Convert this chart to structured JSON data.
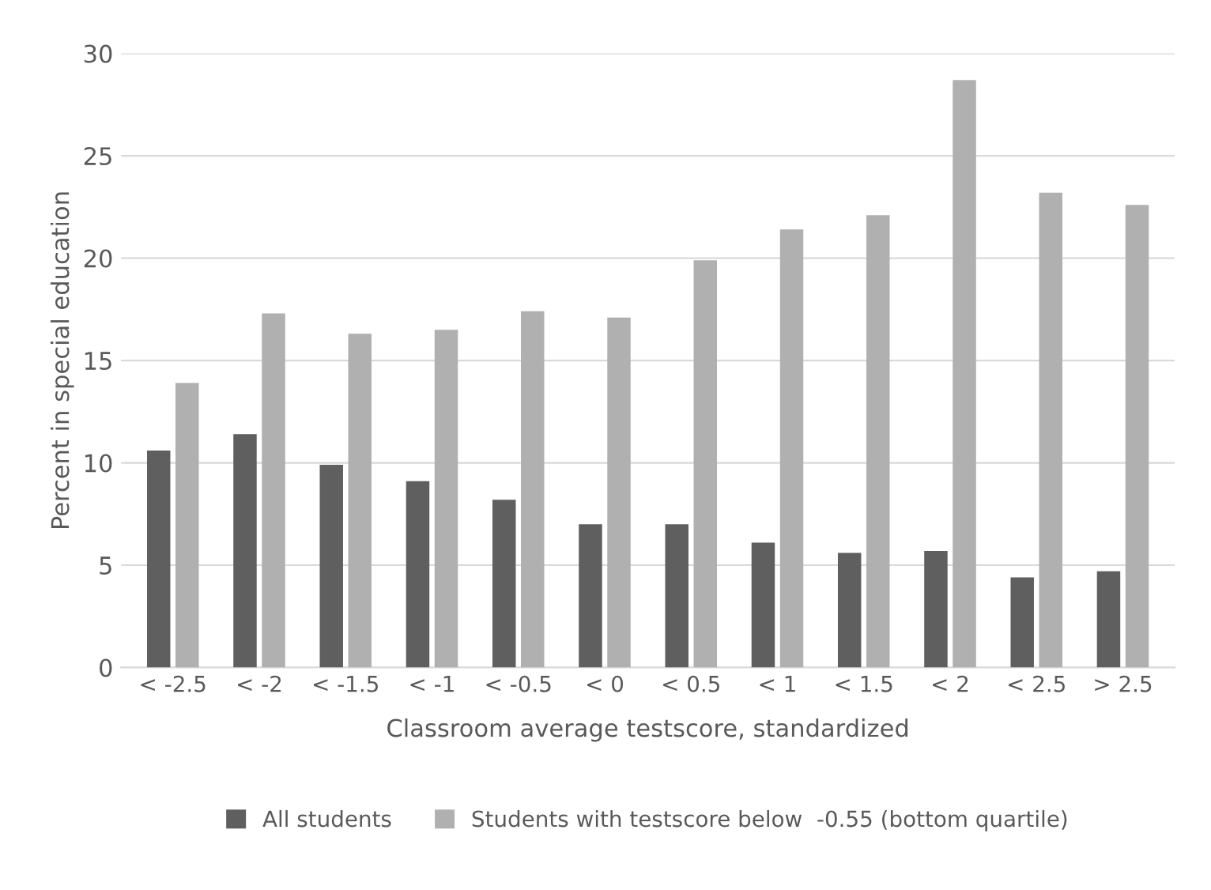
{
  "chart_data": {
    "type": "bar",
    "xlabel": "Classroom average testscore, standardized",
    "ylabel": "Percent in special education",
    "categories": [
      "< -2.5",
      "< -2",
      "< -1.5",
      "< -1",
      "< -0.5",
      "< 0",
      "< 0.5",
      "< 1",
      "< 1.5",
      "< 2",
      "< 2.5",
      "> 2.5"
    ],
    "series": [
      {
        "name": "All students",
        "color": "#5f5f5f",
        "values": [
          10.6,
          11.4,
          9.9,
          9.1,
          8.2,
          7.0,
          7.0,
          6.1,
          5.6,
          5.7,
          4.4,
          4.7
        ]
      },
      {
        "name": "Students with testscore below  -0.55 (bottom quartile)",
        "color": "#b0b0b0",
        "values": [
          13.9,
          17.3,
          16.3,
          16.5,
          17.4,
          17.1,
          19.9,
          21.4,
          22.1,
          28.7,
          23.2,
          22.6
        ]
      }
    ],
    "ylim": [
      0,
      30
    ],
    "yticks": [
      0,
      5,
      10,
      15,
      20,
      25,
      30
    ],
    "grid": "y",
    "legend": "bottom"
  }
}
